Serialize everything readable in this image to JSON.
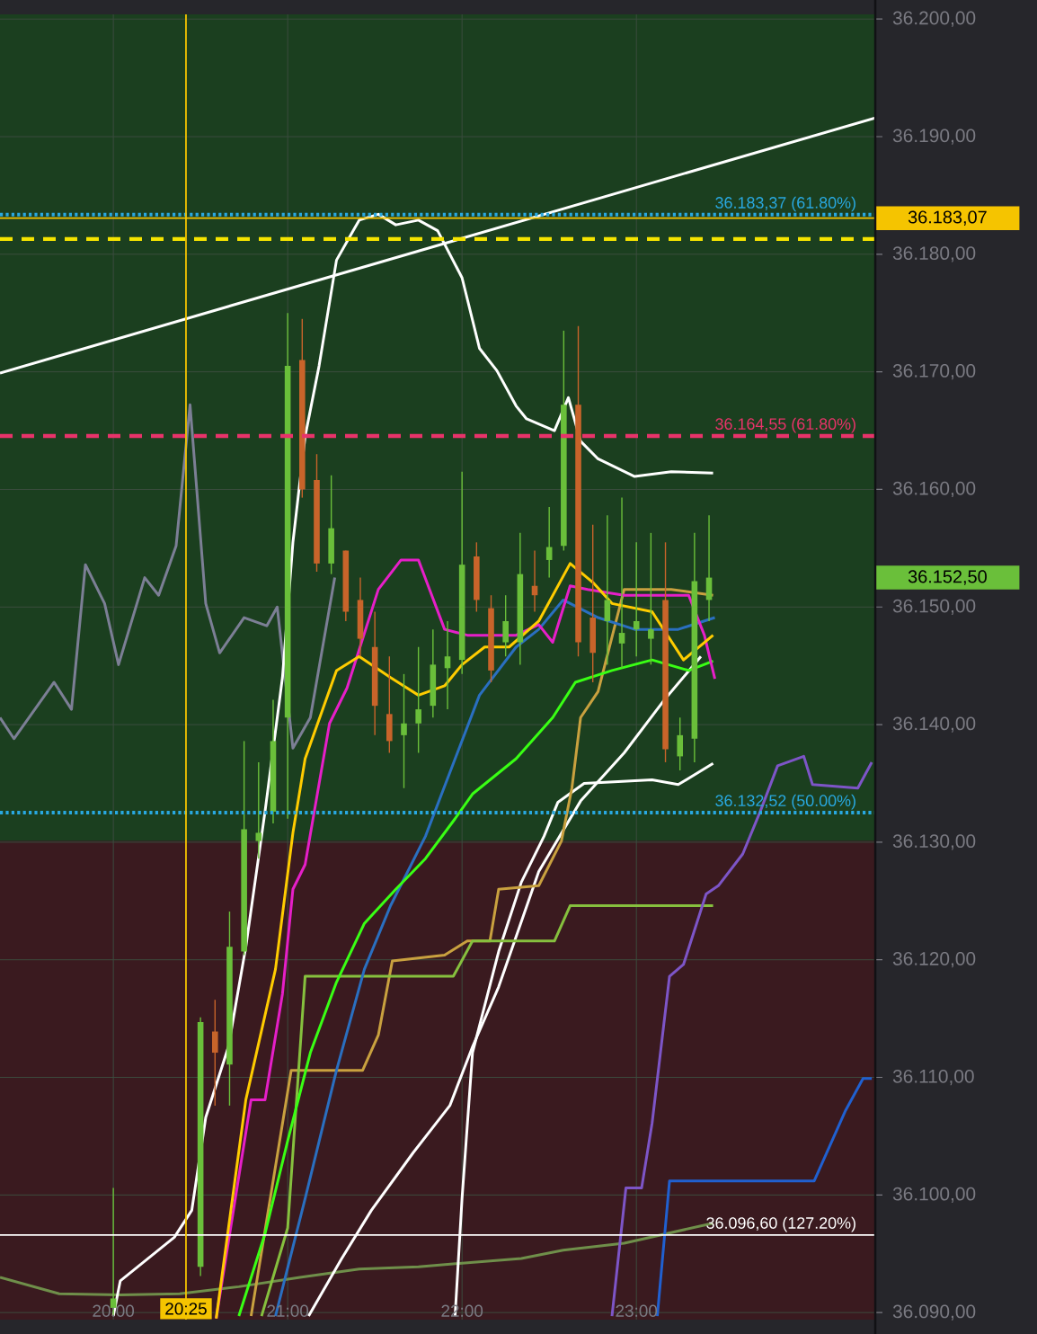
{
  "chart_data": {
    "type": "candlestick",
    "x": [
      20.0,
      20.5,
      20.5833,
      20.6667,
      20.75,
      20.8333,
      20.9167,
      21.0,
      21.0833,
      21.1667,
      21.25,
      21.3333,
      21.4167,
      21.5,
      21.5833,
      21.6667,
      21.75,
      21.8333,
      21.9167,
      22.0,
      22.0833,
      22.1667,
      22.25,
      22.3333,
      22.4167,
      22.5,
      22.5833,
      22.6667,
      22.75,
      22.8333,
      22.9167,
      23.0,
      23.0833,
      23.1667,
      23.25,
      23.3333,
      23.4167
    ],
    "ohlc": [
      [
        36090.4,
        36100.6,
        36089.7,
        36091.2
      ],
      [
        36093.9,
        36115.1,
        36093.1,
        36114.7
      ],
      [
        36113.9,
        36116.6,
        36107.6,
        36112.1
      ],
      [
        36111.1,
        36124.1,
        36107.6,
        36121.1
      ],
      [
        36120.7,
        36138.6,
        36120.4,
        36131.1
      ],
      [
        36130.1,
        36136.8,
        36128.6,
        36130.8
      ],
      [
        36132.6,
        36142.1,
        36131.6,
        36138.6
      ],
      [
        36140.6,
        36175.0,
        36132.0,
        36170.5
      ],
      [
        36171.0,
        36174.5,
        36159.3,
        36160.0
      ],
      [
        36160.8,
        36163.0,
        36153.0,
        36153.7
      ],
      [
        36153.7,
        36161.2,
        36152.8,
        36156.7
      ],
      [
        36154.8,
        36154.8,
        36148.8,
        36149.6
      ],
      [
        36150.6,
        36152.5,
        36145.8,
        36147.3
      ],
      [
        36146.6,
        36149.6,
        36139.1,
        36141.6
      ],
      [
        36140.9,
        36145.8,
        36137.6,
        36138.6
      ],
      [
        36139.1,
        36144.3,
        36134.6,
        36140.1
      ],
      [
        36140.1,
        36146.6,
        36137.6,
        36141.3
      ],
      [
        36141.6,
        36148.1,
        36140.6,
        36145.1
      ],
      [
        36144.8,
        36148.8,
        36141.3,
        36145.8
      ],
      [
        36145.5,
        36161.5,
        36144.3,
        36153.6
      ],
      [
        36154.3,
        36155.5,
        36149.6,
        36150.6
      ],
      [
        36149.9,
        36151.0,
        36143.6,
        36144.6
      ],
      [
        36147.0,
        36151.0,
        36145.8,
        36148.8
      ],
      [
        36147.0,
        36156.3,
        36145.1,
        36152.8
      ],
      [
        36151.8,
        36154.8,
        36149.6,
        36151.0
      ],
      [
        36154.0,
        36158.5,
        36152.5,
        36155.1
      ],
      [
        36155.2,
        36173.5,
        36154.8,
        36167.2
      ],
      [
        36167.2,
        36173.9,
        36145.8,
        36147.0
      ],
      [
        36149.1,
        36157.0,
        36143.6,
        36146.1
      ],
      [
        36148.8,
        36157.8,
        36145.1,
        36150.6
      ],
      [
        36146.9,
        36159.3,
        36144.8,
        36147.8
      ],
      [
        36148.1,
        36155.5,
        36145.8,
        36148.8
      ],
      [
        36147.3,
        36156.3,
        36145.1,
        36148.1
      ],
      [
        36150.6,
        36155.5,
        36136.8,
        36137.9
      ],
      [
        36137.3,
        36140.6,
        36136.1,
        36139.1
      ],
      [
        36138.8,
        36156.3,
        36136.8,
        36152.2
      ],
      [
        36150.6,
        36157.8,
        36148.8,
        36152.5
      ]
    ],
    "series": [
      {
        "type": "line",
        "color": "#7c7f95",
        "x": [
          19.35,
          19.43,
          19.66,
          19.76,
          19.84,
          19.95,
          20.03,
          20.18,
          20.26,
          20.36,
          20.44,
          20.53,
          20.61,
          20.75,
          20.88,
          20.94,
          21.03,
          21.13,
          21.27
        ],
        "values": [
          36140.6,
          36138.8,
          36143.6,
          36141.3,
          36153.6,
          36150.3,
          36145.1,
          36152.5,
          36151.0,
          36155.2,
          36167.2,
          36150.3,
          36146.1,
          36149.1,
          36148.4,
          36150.0,
          36138.0,
          36140.6,
          36152.5
        ]
      },
      {
        "type": "line",
        "color": "#6f8f4a",
        "x": [
          19.35,
          19.69,
          20.04,
          20.38,
          20.72,
          21.07,
          21.41,
          21.75,
          22.34,
          22.58,
          22.93,
          23.44
        ],
        "values": [
          36093.0,
          36091.6,
          36091.5,
          36091.6,
          36092.2,
          36093.0,
          36093.7,
          36093.9,
          36094.6,
          36095.3,
          36095.9,
          36097.6
        ]
      },
      {
        "type": "line",
        "color": "#ffffff",
        "x": [
          19.35,
          24.37
        ],
        "values": [
          36169.9,
          36191.6
        ]
      },
      {
        "type": "line",
        "color": "#ffffff",
        "x": [
          20.0,
          20.04,
          20.35,
          20.45,
          20.53,
          20.66,
          20.76,
          20.87,
          20.97,
          21.03,
          21.1,
          21.18,
          21.28,
          21.41,
          21.52,
          21.62,
          21.75,
          21.86,
          22.0,
          22.1,
          22.2,
          22.31,
          22.37,
          22.53,
          22.61,
          22.68,
          22.78,
          22.99,
          23.2,
          23.44
        ],
        "values": [
          36089.7,
          36092.7,
          36096.4,
          36098.7,
          36106.6,
          36112.6,
          36121.1,
          36132.6,
          36144.0,
          36155.5,
          36164.5,
          36170.5,
          36179.5,
          36182.9,
          36183.4,
          36182.5,
          36182.9,
          36182.0,
          36178.0,
          36172.0,
          36170.1,
          36167.1,
          36166.0,
          36165.0,
          36167.8,
          36164.1,
          36162.6,
          36161.1,
          36161.5,
          36161.4
        ]
      },
      {
        "type": "line",
        "color": "#ffffff",
        "x": [
          21.12,
          21.31,
          21.48,
          21.72,
          21.93,
          22.06,
          22.21,
          22.44,
          22.68,
          22.93,
          23.16,
          23.37
        ],
        "values": [
          36089.7,
          36094.6,
          36098.7,
          36103.6,
          36107.6,
          36112.6,
          36117.7,
          36127.5,
          36133.5,
          36137.6,
          36142.1,
          36145.8
        ]
      },
      {
        "type": "line",
        "color": "#ffffff",
        "x": [
          21.96,
          22.0,
          22.06,
          22.21,
          22.34,
          22.47,
          22.55,
          22.7,
          23.09,
          23.24,
          23.44
        ],
        "values": [
          36089.7,
          36099.7,
          36112.1,
          36120.7,
          36126.6,
          36130.5,
          36133.4,
          36135.0,
          36135.3,
          36134.9,
          36136.7
        ]
      },
      {
        "type": "line",
        "color": "#c9a13f",
        "x": [
          20.79,
          21.02,
          21.43,
          21.52,
          21.6,
          21.9,
          22.03,
          22.16,
          22.21,
          22.44,
          22.57,
          22.63,
          22.68,
          22.78,
          22.93,
          23.2,
          23.44
        ],
        "values": [
          36089.7,
          36110.6,
          36110.6,
          36113.6,
          36119.9,
          36120.4,
          36121.6,
          36121.6,
          36126.0,
          36126.3,
          36130.1,
          36134.6,
          36140.6,
          36142.8,
          36151.5,
          36151.5,
          36151.0
        ]
      },
      {
        "type": "line",
        "color": "#86c03e",
        "x": [
          20.85,
          21.0,
          21.1,
          21.95,
          22.06,
          22.53,
          22.62,
          23.44
        ],
        "values": [
          36089.7,
          36097.2,
          36118.6,
          36118.6,
          36121.6,
          36121.6,
          36124.6,
          36124.6
        ]
      },
      {
        "type": "line",
        "color": "#2a6fc0",
        "x": [
          20.93,
          21.1,
          21.28,
          21.44,
          21.59,
          21.79,
          22.1,
          22.31,
          22.44,
          22.58,
          22.78,
          22.99,
          23.24,
          23.45
        ],
        "values": [
          36089.7,
          36099.7,
          36110.6,
          36119.2,
          36124.6,
          36130.5,
          36142.5,
          36146.6,
          36148.1,
          36150.6,
          36149.1,
          36148.1,
          36148.1,
          36149.1
        ]
      },
      {
        "type": "line",
        "color": "#39ff14",
        "x": [
          20.72,
          20.87,
          21.0,
          21.13,
          21.28,
          21.44,
          21.62,
          21.79,
          21.96,
          22.06,
          22.31,
          22.52,
          22.65,
          22.86,
          23.09,
          23.3,
          23.44
        ],
        "values": [
          36089.7,
          36096.7,
          36104.6,
          36112.1,
          36118.1,
          36123.1,
          36126.0,
          36128.6,
          36132.0,
          36134.1,
          36137.1,
          36140.6,
          36143.6,
          36144.6,
          36145.5,
          36144.6,
          36145.4
        ]
      },
      {
        "type": "line",
        "color": "#e61fc8",
        "x": [
          20.59,
          20.79,
          20.87,
          20.97,
          21.03,
          21.1,
          21.24,
          21.34,
          21.52,
          21.65,
          21.75,
          21.9,
          22.03,
          22.31,
          22.44,
          22.52,
          22.62,
          22.72,
          22.93,
          23.3,
          23.39,
          23.45
        ],
        "values": [
          36089.5,
          36108.1,
          36108.1,
          36117.1,
          36126.0,
          36128.1,
          36140.1,
          36143.1,
          36151.5,
          36154.0,
          36154.0,
          36148.1,
          36147.6,
          36147.6,
          36148.5,
          36147.0,
          36151.8,
          36151.5,
          36151.0,
          36151.0,
          36147.6,
          36143.9
        ]
      },
      {
        "type": "line",
        "color": "#ffcc00",
        "x": [
          20.59,
          20.76,
          20.93,
          21.03,
          21.1,
          21.28,
          21.41,
          21.59,
          21.75,
          21.9,
          22.0,
          22.13,
          22.27,
          22.44,
          22.62,
          22.75,
          22.86,
          23.09,
          23.27,
          23.44
        ],
        "values": [
          36089.5,
          36108.1,
          36119.2,
          36130.8,
          36137.1,
          36144.6,
          36145.8,
          36144.0,
          36142.5,
          36143.3,
          36145.1,
          36146.6,
          36146.6,
          36148.8,
          36153.7,
          36152.1,
          36150.3,
          36149.6,
          36145.5,
          36147.6
        ]
      },
      {
        "type": "line",
        "color": "#7d55c7",
        "x": [
          22.86,
          22.94,
          23.03,
          23.09,
          23.19,
          23.27,
          23.4,
          23.47,
          23.61,
          23.71,
          23.81,
          23.96,
          24.01,
          24.27,
          24.35
        ],
        "values": [
          36089.7,
          36100.6,
          36100.6,
          36106.1,
          36118.6,
          36119.6,
          36125.6,
          36126.3,
          36129.0,
          36132.6,
          36136.5,
          36137.3,
          36134.9,
          36134.6,
          36136.8
        ]
      },
      {
        "type": "line",
        "color": "#2060d0",
        "x": [
          23.12,
          23.19,
          24.02,
          24.2,
          24.3,
          24.35
        ],
        "values": [
          36089.7,
          36101.2,
          36101.2,
          36107.2,
          36109.9,
          36109.9
        ]
      }
    ],
    "xlim": [
      19.35,
      24.37
    ],
    "ylim": [
      36089.4,
      36200.4
    ],
    "xticks": [
      {
        "value": 20,
        "label": "20:00"
      },
      {
        "value": 21,
        "label": "21:00"
      },
      {
        "value": 22,
        "label": "22:00"
      },
      {
        "value": 23,
        "label": "23:00"
      }
    ],
    "yticks": [
      {
        "value": 36090,
        "label": "36.090,00"
      },
      {
        "value": 36100,
        "label": "36.100,00"
      },
      {
        "value": 36110,
        "label": "36.110,00"
      },
      {
        "value": 36120,
        "label": "36.120,00"
      },
      {
        "value": 36130,
        "label": "36.130,00"
      },
      {
        "value": 36140,
        "label": "36.140,00"
      },
      {
        "value": 36150,
        "label": "36.150,00"
      },
      {
        "value": 36160,
        "label": "36.160,00"
      },
      {
        "value": 36170,
        "label": "36.170,00"
      },
      {
        "value": 36180,
        "label": "36.180,00"
      },
      {
        "value": 36190,
        "label": "36.190,00"
      },
      {
        "value": 36200,
        "label": "36.200,00"
      }
    ],
    "bands": [
      {
        "axis": "y",
        "from": 36130.1,
        "to": 36200.4,
        "color": "#1b3f1f"
      },
      {
        "axis": "y",
        "from": 36089.4,
        "to": 36130.1,
        "color": "#3a1a1f"
      }
    ],
    "ref_lines": [
      {
        "axis": "y",
        "value": 36183.37,
        "label": "36.183,37 (61.80%)",
        "color": "#29a8e0",
        "line_style": "dotted"
      },
      {
        "axis": "y",
        "value": 36183.07,
        "color": "#f5c400",
        "line_style": "solid"
      },
      {
        "axis": "y",
        "value": 36181.3,
        "color": "#f5e400",
        "line_style": "dashed"
      },
      {
        "axis": "y",
        "value": 36164.55,
        "label": "36.164,55 (61.80%)",
        "color": "#e8336a",
        "line_style": "dashed"
      },
      {
        "axis": "y",
        "value": 36132.52,
        "label": "36.132,52 (50.00%)",
        "color": "#29a8e0",
        "line_style": "dotted"
      },
      {
        "axis": "y",
        "value": 36096.6,
        "label": "36.096,60 (127.20%)",
        "color": "#ffffff",
        "line_style": "solid"
      },
      {
        "axis": "x",
        "value": 20.4167,
        "label": "20:25",
        "color": "#f5c400",
        "line_style": "solid"
      }
    ],
    "annotations": [
      "36.183,07",
      "36.152,50"
    ],
    "grid": true
  }
}
